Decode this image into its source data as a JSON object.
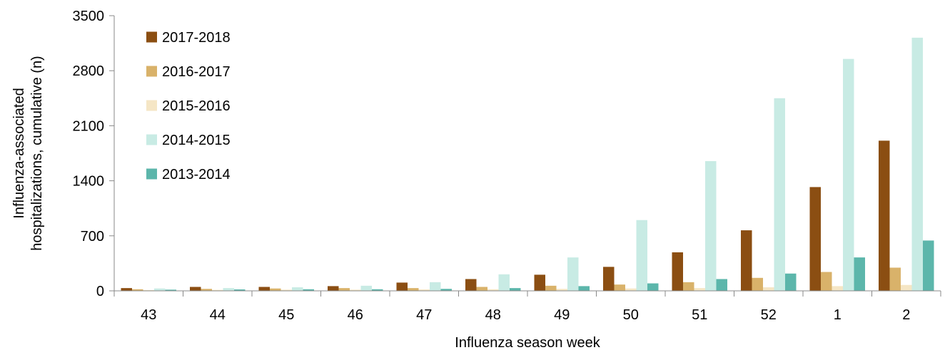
{
  "chart_data": {
    "type": "bar",
    "title": "",
    "xlabel": "Influenza season week",
    "ylabel": "Influenza-associated hospitalizations, cumulative (n)",
    "ylim": [
      0,
      3500
    ],
    "yticks": [
      0,
      700,
      1400,
      2100,
      2800,
      3500
    ],
    "grid": false,
    "legend_position": "top-left",
    "categories": [
      "43",
      "44",
      "45",
      "46",
      "47",
      "48",
      "49",
      "50",
      "51",
      "52",
      "1",
      "2"
    ],
    "series": [
      {
        "name": "2017-2018",
        "color": "#8b4e12",
        "values": [
          35,
          50,
          50,
          60,
          105,
          150,
          205,
          305,
          490,
          770,
          1320,
          1910
        ]
      },
      {
        "name": "2016-2017",
        "color": "#d9b26a",
        "values": [
          20,
          25,
          30,
          35,
          35,
          50,
          65,
          80,
          110,
          165,
          240,
          295
        ]
      },
      {
        "name": "2015-2016",
        "color": "#f5e6c5",
        "values": [
          10,
          12,
          15,
          15,
          18,
          20,
          25,
          30,
          35,
          45,
          60,
          75
        ]
      },
      {
        "name": "2014-2015",
        "color": "#c8ebe4",
        "values": [
          30,
          35,
          45,
          65,
          110,
          210,
          425,
          900,
          1650,
          2450,
          2950,
          3220
        ]
      },
      {
        "name": "2013-2014",
        "color": "#5cb6ab",
        "values": [
          15,
          18,
          20,
          20,
          25,
          35,
          60,
          95,
          150,
          220,
          425,
          640
        ]
      }
    ]
  }
}
